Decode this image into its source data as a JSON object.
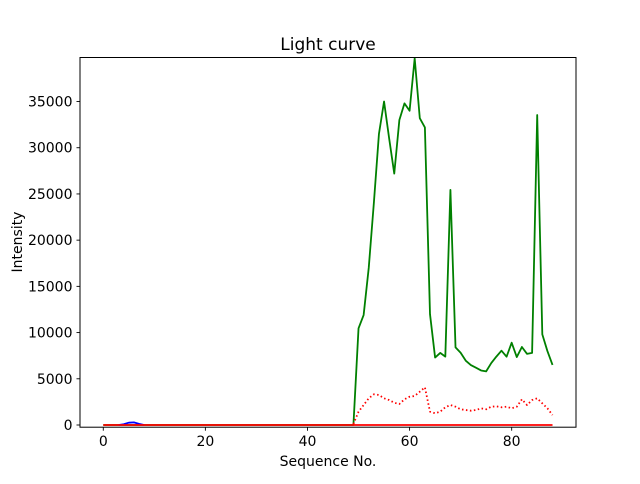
{
  "chart_data": {
    "type": "line",
    "title": "Light curve",
    "xlabel": "Sequence No.",
    "ylabel": "Intensity",
    "xlim": [
      -4.56,
      92.6
    ],
    "ylim": [
      -238,
      39762
    ],
    "xticks": {
      "values": [
        0,
        20,
        40,
        60,
        80
      ],
      "labels": [
        "0",
        "20",
        "40",
        "60",
        "80"
      ]
    },
    "yticks": {
      "values": [
        0,
        5000,
        10000,
        15000,
        20000,
        25000,
        30000,
        35000
      ],
      "labels": [
        "0",
        "5000",
        "10000",
        "15000",
        "20000",
        "25000",
        "30000",
        "35000"
      ]
    },
    "grid": false,
    "legend": false,
    "background": "#ffffff",
    "frame_color": "#000000",
    "series": [
      {
        "name": "intensity-green",
        "color": "#008000",
        "linestyle": "solid",
        "linewidth": 1.8,
        "x0": 0,
        "y": [
          0,
          0,
          0,
          0,
          0,
          0,
          0,
          0,
          0,
          0,
          0,
          0,
          0,
          0,
          0,
          0,
          0,
          0,
          0,
          0,
          0,
          0,
          0,
          0,
          0,
          0,
          0,
          0,
          0,
          0,
          0,
          0,
          0,
          0,
          0,
          0,
          0,
          0,
          0,
          0,
          0,
          0,
          0,
          0,
          0,
          0,
          0,
          0,
          0,
          0,
          10460,
          11900,
          17000,
          24000,
          31500,
          35000,
          31000,
          27200,
          33000,
          34800,
          34000,
          39670,
          33200,
          32200,
          12000,
          7300,
          7800,
          7400,
          25430,
          8400,
          7820,
          6960,
          6490,
          6200,
          5900,
          5800,
          6700,
          7400,
          8040,
          7390,
          8900,
          7350,
          8440,
          7700,
          7800,
          33540,
          9800,
          8000,
          6500
        ]
      },
      {
        "name": "blue-bump",
        "color": "#0000ff",
        "linestyle": "solid",
        "linewidth": 1.8,
        "x0": 3,
        "y": [
          0,
          80,
          250,
          280,
          120,
          0
        ]
      },
      {
        "name": "zero-baseline-red",
        "color": "#ff0000",
        "linestyle": "solid",
        "linewidth": 1.8,
        "x": [
          0,
          88
        ],
        "y": [
          0,
          0
        ]
      },
      {
        "name": "secondary-red-dotted",
        "color": "#ff0000",
        "linestyle": "dotted",
        "linewidth": 1.8,
        "x0": 49,
        "y": [
          100,
          1440,
          2160,
          2890,
          3320,
          3250,
          2890,
          2700,
          2410,
          2270,
          2780,
          3060,
          3140,
          3600,
          4080,
          1440,
          1270,
          1440,
          1915,
          2160,
          1980,
          1700,
          1620,
          1550,
          1620,
          1805,
          1700,
          1980,
          2020,
          1915,
          1980,
          1805,
          1980,
          2780,
          2160,
          2700,
          2890,
          2345,
          1805,
          1080
        ]
      }
    ]
  }
}
